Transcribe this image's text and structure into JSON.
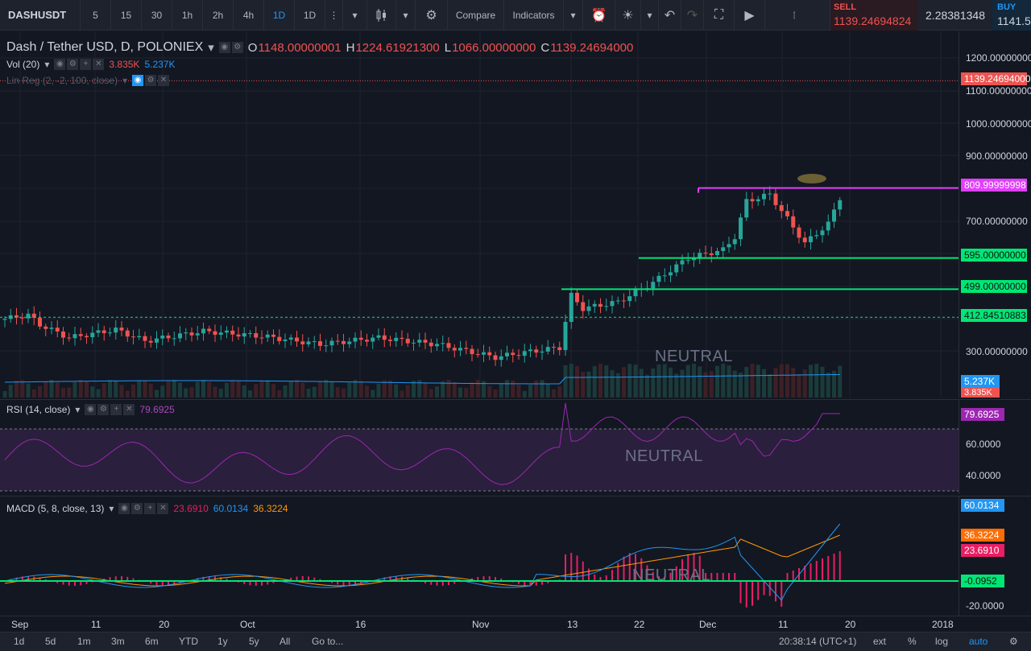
{
  "toolbar": {
    "symbol": "DASHUSDT",
    "intervals": [
      "5",
      "15",
      "30",
      "1h",
      "2h",
      "4h",
      "1D",
      "1D"
    ],
    "active_interval_index": 6,
    "compare_label": "Compare",
    "indicators_label": "Indicators",
    "sell_label": "SELL",
    "sell_price": "1139.24694824",
    "spread": "2.28381348",
    "buy_label": "BUY",
    "buy_price": "1141.5"
  },
  "legend": {
    "title": "Dash / Tether USD, D, POLONIEX",
    "open_label": "O",
    "open": "1148.00000001",
    "high_label": "H",
    "high": "1224.61921300",
    "low_label": "L",
    "low": "1066.00000000",
    "close_label": "C",
    "close": "1139.24694000",
    "vol_title": "Vol (20)",
    "vol_value1": "3.835K",
    "vol_value2": "5.237K",
    "linreg_title": "Lin Reg (2, -2, 100, close)"
  },
  "price_axis": {
    "labels": [
      "1200.00000000",
      "1100.00000000",
      "1000.00000000",
      "900.00000000",
      "700.00000000",
      "300.00000000"
    ],
    "tags": {
      "last": "1139.24694000",
      "level_magenta": "809.99999998",
      "level_595": "595.00000000",
      "level_499": "499.00000000",
      "level_412": "412.84510883",
      "vol_ma": "5.237K",
      "vol": "3.835K"
    }
  },
  "levels": {
    "magenta": 810,
    "green_595": 595,
    "green_499": 499,
    "dotted_412": 412.85
  },
  "watermarks": {
    "main": "NEUTRAL",
    "rsi": "NEUTRAL",
    "macd": "NEUTRAL"
  },
  "rsi": {
    "title": "RSI (14, close)",
    "value": "79.6925",
    "axis_labels": [
      "60.0000",
      "40.0000"
    ],
    "tag": "79.6925"
  },
  "macd": {
    "title": "MACD (5, 8, close, 13)",
    "hist": "23.6910",
    "macd": "60.0134",
    "signal": "36.3224",
    "axis_labels": [
      "-20.0000"
    ],
    "tags": {
      "macd": "60.0134",
      "signal": "36.3224",
      "hist": "23.6910",
      "zero": "-0.0952"
    }
  },
  "time_axis": [
    "Sep",
    "11",
    "20",
    "Oct",
    "16",
    "Nov",
    "13",
    "22",
    "Dec",
    "11",
    "20",
    "2018"
  ],
  "bottom": {
    "ranges": [
      "1d",
      "5d",
      "1m",
      "3m",
      "6m",
      "YTD",
      "1y",
      "5y",
      "All"
    ],
    "goto": "Go to...",
    "clock": "20:38:14 (UTC+1)",
    "ext": "ext",
    "percent": "%",
    "log": "log",
    "auto": "auto"
  },
  "colors": {
    "up": "#26a69a",
    "down": "#ef5350",
    "magenta_level": "#e040fb",
    "green_level": "#00e676",
    "rsi_line": "#9c27b0",
    "macd_line": "#2196f3",
    "signal_line": "#ff9800",
    "hist": "#e91e63"
  }
}
